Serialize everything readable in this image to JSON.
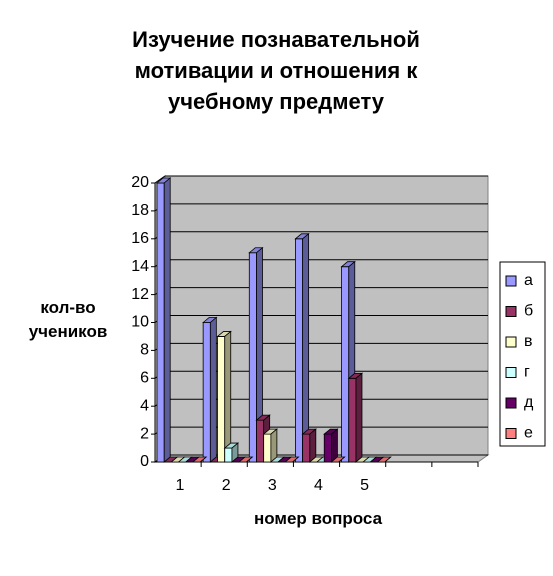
{
  "chart_data": {
    "type": "bar3d",
    "title": "Изучение познавательной мотивации и отношения к учебному предмету",
    "y_label": "кол-во учеников",
    "x_label": "номер вопроса",
    "categories": [
      "1",
      "2",
      "3",
      "4",
      "5",
      null,
      null
    ],
    "series": [
      {
        "name": "а",
        "color": "#9999ff",
        "values": [
          20,
          10,
          15,
          16,
          14,
          null,
          null
        ]
      },
      {
        "name": "б",
        "color": "#993366",
        "values": [
          0,
          0,
          3,
          2,
          6,
          null,
          null
        ]
      },
      {
        "name": "в",
        "color": "#ffffcc",
        "values": [
          0,
          9,
          2,
          0,
          0,
          null,
          null
        ]
      },
      {
        "name": "г",
        "color": "#ccffff",
        "values": [
          0,
          1,
          0,
          0,
          0,
          null,
          null
        ]
      },
      {
        "name": "д",
        "color": "#660066",
        "values": [
          0,
          0,
          0,
          2,
          0,
          null,
          null
        ]
      },
      {
        "name": "е",
        "color": "#ff8080",
        "values": [
          0,
          0,
          0,
          0,
          0,
          null,
          null
        ]
      }
    ],
    "ylim": [
      0,
      20
    ],
    "yticks": [
      0,
      2,
      4,
      6,
      8,
      10,
      12,
      14,
      16,
      18,
      20
    ],
    "grid": true,
    "legend": "right"
  }
}
